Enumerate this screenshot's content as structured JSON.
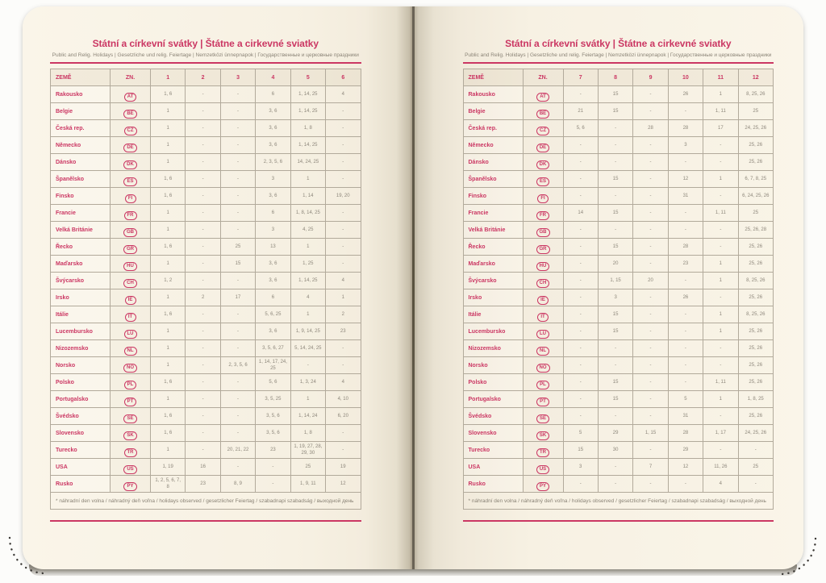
{
  "book": {
    "accent_color": "#cb3763",
    "page_color": "#f7f1e3",
    "grid_color": "#b2aa9b",
    "value_text_color": "#8d877b",
    "spine_color": "#5f584b"
  },
  "pages": [
    {
      "title": "Státní a církevní svátky | Štátne a cirkevné sviatky",
      "subtitle": "Public and Relig. Holidays | Gesetzliche und relig. Feiertage | Nemzetközi ünnepnapok | Государственные и церковные праздники",
      "columns": [
        "ZEMĚ",
        "ZN.",
        "1",
        "2",
        "3",
        "4",
        "5",
        "6"
      ],
      "rows": [
        {
          "country": "Rakousko",
          "code": "AT",
          "values": [
            "1, 6",
            "-",
            "-",
            "6",
            "1, 14, 25",
            "4"
          ]
        },
        {
          "country": "Belgie",
          "code": "BE",
          "values": [
            "1",
            "-",
            "-",
            "3, 6",
            "1, 14, 25",
            "-"
          ]
        },
        {
          "country": "Česká rep.",
          "code": "CZ",
          "values": [
            "1",
            "-",
            "-",
            "3, 6",
            "1, 8",
            "-"
          ]
        },
        {
          "country": "Německo",
          "code": "DE",
          "values": [
            "1",
            "-",
            "-",
            "3, 6",
            "1, 14, 25",
            "-"
          ]
        },
        {
          "country": "Dánsko",
          "code": "DK",
          "values": [
            "1",
            "-",
            "-",
            "2, 3, 5, 6",
            "14, 24, 25",
            "-"
          ]
        },
        {
          "country": "Španělsko",
          "code": "ES",
          "values": [
            "1, 6",
            "-",
            "-",
            "3",
            "1",
            "-"
          ]
        },
        {
          "country": "Finsko",
          "code": "FI",
          "values": [
            "1, 6",
            "-",
            "-",
            "3, 6",
            "1, 14",
            "19, 20"
          ]
        },
        {
          "country": "Francie",
          "code": "FR",
          "values": [
            "1",
            "-",
            "-",
            "6",
            "1, 8, 14, 25",
            "-"
          ]
        },
        {
          "country": "Velká Británie",
          "code": "GB",
          "values": [
            "1",
            "-",
            "-",
            "3",
            "4, 25",
            "-"
          ]
        },
        {
          "country": "Řecko",
          "code": "GR",
          "values": [
            "1, 6",
            "-",
            "25",
            "13",
            "1",
            "-"
          ]
        },
        {
          "country": "Maďarsko",
          "code": "HU",
          "values": [
            "1",
            "-",
            "15",
            "3, 6",
            "1, 25",
            "-"
          ]
        },
        {
          "country": "Švýcarsko",
          "code": "CH",
          "values": [
            "1, 2",
            "-",
            "-",
            "3, 6",
            "1, 14, 25",
            "4"
          ]
        },
        {
          "country": "Irsko",
          "code": "IE",
          "values": [
            "1",
            "2",
            "17",
            "6",
            "4",
            "1"
          ]
        },
        {
          "country": "Itálie",
          "code": "IT",
          "values": [
            "1, 6",
            "-",
            "-",
            "5, 6, 25",
            "1",
            "2"
          ]
        },
        {
          "country": "Lucembursko",
          "code": "LU",
          "values": [
            "1",
            "-",
            "-",
            "3, 6",
            "1, 9, 14, 25",
            "23"
          ]
        },
        {
          "country": "Nizozemsko",
          "code": "NL",
          "values": [
            "1",
            "-",
            "-",
            "3, 5, 6, 27",
            "5, 14, 24, 25",
            "-"
          ]
        },
        {
          "country": "Norsko",
          "code": "NO",
          "values": [
            "1",
            "-",
            "2, 3, 5, 6",
            "1, 14, 17, 24, 25",
            "-",
            "-"
          ]
        },
        {
          "country": "Polsko",
          "code": "PL",
          "values": [
            "1, 6",
            "-",
            "-",
            "5, 6",
            "1, 3, 24",
            "4"
          ]
        },
        {
          "country": "Portugalsko",
          "code": "PT",
          "values": [
            "1",
            "-",
            "-",
            "3, 5, 25",
            "1",
            "4, 10"
          ]
        },
        {
          "country": "Švédsko",
          "code": "SE",
          "values": [
            "1, 6",
            "-",
            "-",
            "3, 5, 6",
            "1, 14, 24",
            "6, 20"
          ]
        },
        {
          "country": "Slovensko",
          "code": "SK",
          "values": [
            "1, 6",
            "-",
            "-",
            "3, 5, 6",
            "1, 8",
            "-"
          ]
        },
        {
          "country": "Turecko",
          "code": "TR",
          "values": [
            "1",
            "-",
            "20, 21, 22",
            "23",
            "1, 19, 27, 28, 29, 30",
            "-"
          ]
        },
        {
          "country": "USA",
          "code": "US",
          "values": [
            "1, 19",
            "16",
            "-",
            "-",
            "25",
            "19"
          ]
        },
        {
          "country": "Rusko",
          "code": "PY",
          "values": [
            "1, 2, 5, 6, 7, 8",
            "23",
            "8, 9",
            "-",
            "1, 9, 11",
            "12"
          ]
        }
      ],
      "footnote": "* náhradní den volna / náhradný deň voľna / holidays observed / gesetzlicher Feiertag / szabadnapi szabadság / выходной день"
    },
    {
      "title": "Státní a církevní svátky | Štátne a cirkevné sviatky",
      "subtitle": "Public and Relig. Holidays | Gesetzliche und relig. Feiertage | Nemzetközi ünnepnapok | Государственные и церковные праздники",
      "columns": [
        "ZEMĚ",
        "ZN.",
        "7",
        "8",
        "9",
        "10",
        "11",
        "12"
      ],
      "rows": [
        {
          "country": "Rakousko",
          "code": "AT",
          "values": [
            "-",
            "15",
            "-",
            "26",
            "1",
            "8, 25, 26"
          ]
        },
        {
          "country": "Belgie",
          "code": "BE",
          "values": [
            "21",
            "15",
            "-",
            "-",
            "1, 11",
            "25"
          ]
        },
        {
          "country": "Česká rep.",
          "code": "CZ",
          "values": [
            "5, 6",
            "-",
            "28",
            "28",
            "17",
            "24, 25, 26"
          ]
        },
        {
          "country": "Německo",
          "code": "DE",
          "values": [
            "-",
            "-",
            "-",
            "3",
            "-",
            "25, 26"
          ]
        },
        {
          "country": "Dánsko",
          "code": "DK",
          "values": [
            "-",
            "-",
            "-",
            "-",
            "-",
            "25, 26"
          ]
        },
        {
          "country": "Španělsko",
          "code": "ES",
          "values": [
            "-",
            "15",
            "-",
            "12",
            "1",
            "6, 7, 8, 25"
          ]
        },
        {
          "country": "Finsko",
          "code": "FI",
          "values": [
            "-",
            "-",
            "-",
            "31",
            "-",
            "6, 24, 25, 26"
          ]
        },
        {
          "country": "Francie",
          "code": "FR",
          "values": [
            "14",
            "15",
            "-",
            "-",
            "1, 11",
            "25"
          ]
        },
        {
          "country": "Velká Británie",
          "code": "GB",
          "values": [
            "-",
            "-",
            "-",
            "-",
            "-",
            "25, 26, 28"
          ]
        },
        {
          "country": "Řecko",
          "code": "GR",
          "values": [
            "-",
            "15",
            "-",
            "28",
            "-",
            "25, 26"
          ]
        },
        {
          "country": "Maďarsko",
          "code": "HU",
          "values": [
            "-",
            "20",
            "-",
            "23",
            "1",
            "25, 26"
          ]
        },
        {
          "country": "Švýcarsko",
          "code": "CH",
          "values": [
            "-",
            "1, 15",
            "20",
            "-",
            "1",
            "8, 25, 26"
          ]
        },
        {
          "country": "Irsko",
          "code": "IE",
          "values": [
            "-",
            "3",
            "-",
            "26",
            "-",
            "25, 26"
          ]
        },
        {
          "country": "Itálie",
          "code": "IT",
          "values": [
            "-",
            "15",
            "-",
            "-",
            "1",
            "8, 25, 26"
          ]
        },
        {
          "country": "Lucembursko",
          "code": "LU",
          "values": [
            "-",
            "15",
            "-",
            "-",
            "1",
            "25, 26"
          ]
        },
        {
          "country": "Nizozemsko",
          "code": "NL",
          "values": [
            "-",
            "-",
            "-",
            "-",
            "-",
            "25, 26"
          ]
        },
        {
          "country": "Norsko",
          "code": "NO",
          "values": [
            "-",
            "-",
            "-",
            "-",
            "-",
            "25, 26"
          ]
        },
        {
          "country": "Polsko",
          "code": "PL",
          "values": [
            "-",
            "15",
            "-",
            "-",
            "1, 11",
            "25, 26"
          ]
        },
        {
          "country": "Portugalsko",
          "code": "PT",
          "values": [
            "-",
            "15",
            "-",
            "5",
            "1",
            "1, 8, 25"
          ]
        },
        {
          "country": "Švédsko",
          "code": "SE",
          "values": [
            "-",
            "-",
            "-",
            "31",
            "-",
            "25, 26"
          ]
        },
        {
          "country": "Slovensko",
          "code": "SK",
          "values": [
            "5",
            "29",
            "1, 15",
            "28",
            "1, 17",
            "24, 25, 26"
          ]
        },
        {
          "country": "Turecko",
          "code": "TR",
          "values": [
            "15",
            "30",
            "-",
            "29",
            "-",
            "-"
          ]
        },
        {
          "country": "USA",
          "code": "US",
          "values": [
            "3",
            "-",
            "7",
            "12",
            "11, 26",
            "25"
          ]
        },
        {
          "country": "Rusko",
          "code": "PY",
          "values": [
            "-",
            "-",
            "-",
            "-",
            "4",
            "-"
          ]
        }
      ],
      "footnote": "* náhradní den volna / náhradný deň voľna / holidays observed / gesetzlicher Feiertag / szabadnapi szabadság / выходной день"
    }
  ]
}
